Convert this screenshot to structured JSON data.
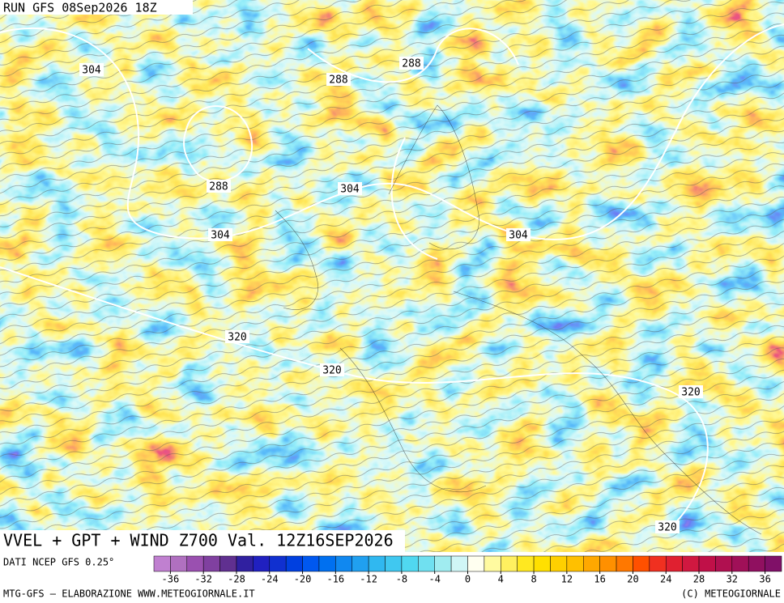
{
  "header": {
    "run": "RUN GFS 08Sep2026 18Z"
  },
  "map": {
    "contour_labels": [
      "304",
      "288",
      "288",
      "288",
      "304",
      "304",
      "304",
      "320",
      "320",
      "320",
      "320"
    ]
  },
  "footer": {
    "title": "VVEL + GPT + WIND Z700 Val. 12Z16SEP2026",
    "source": "DATI NCEP GFS 0.25°",
    "credit_left": "MTG-GFS – ELABORAZIONE WWW.METEOGIORNALE.IT",
    "credit_right": "(C) METEOGIORNALE"
  },
  "colorbar": {
    "lim": [
      -38,
      38
    ],
    "ticks": [
      -36,
      -32,
      -28,
      -24,
      -20,
      -16,
      -12,
      -8,
      -4,
      0,
      4,
      8,
      12,
      16,
      20,
      24,
      28,
      32,
      36
    ],
    "colors": [
      "#c080d0",
      "#b070c0",
      "#9a50b0",
      "#8040a0",
      "#603090",
      "#3020a0",
      "#2020c0",
      "#1030d0",
      "#0040e0",
      "#0058f0",
      "#0070f0",
      "#1088f0",
      "#20a0f0",
      "#30b8f0",
      "#40c8f0",
      "#50d8f0",
      "#70e0f0",
      "#a0ecf0",
      "#d0f6f6",
      "#fffff0",
      "#fffaa0",
      "#fff060",
      "#ffe820",
      "#ffe000",
      "#ffd000",
      "#ffc000",
      "#ffa800",
      "#ff9000",
      "#ff7800",
      "#ff5000",
      "#f03020",
      "#e02030",
      "#d01840",
      "#c01048",
      "#b01050",
      "#a01058",
      "#901060",
      "#801068"
    ]
  }
}
